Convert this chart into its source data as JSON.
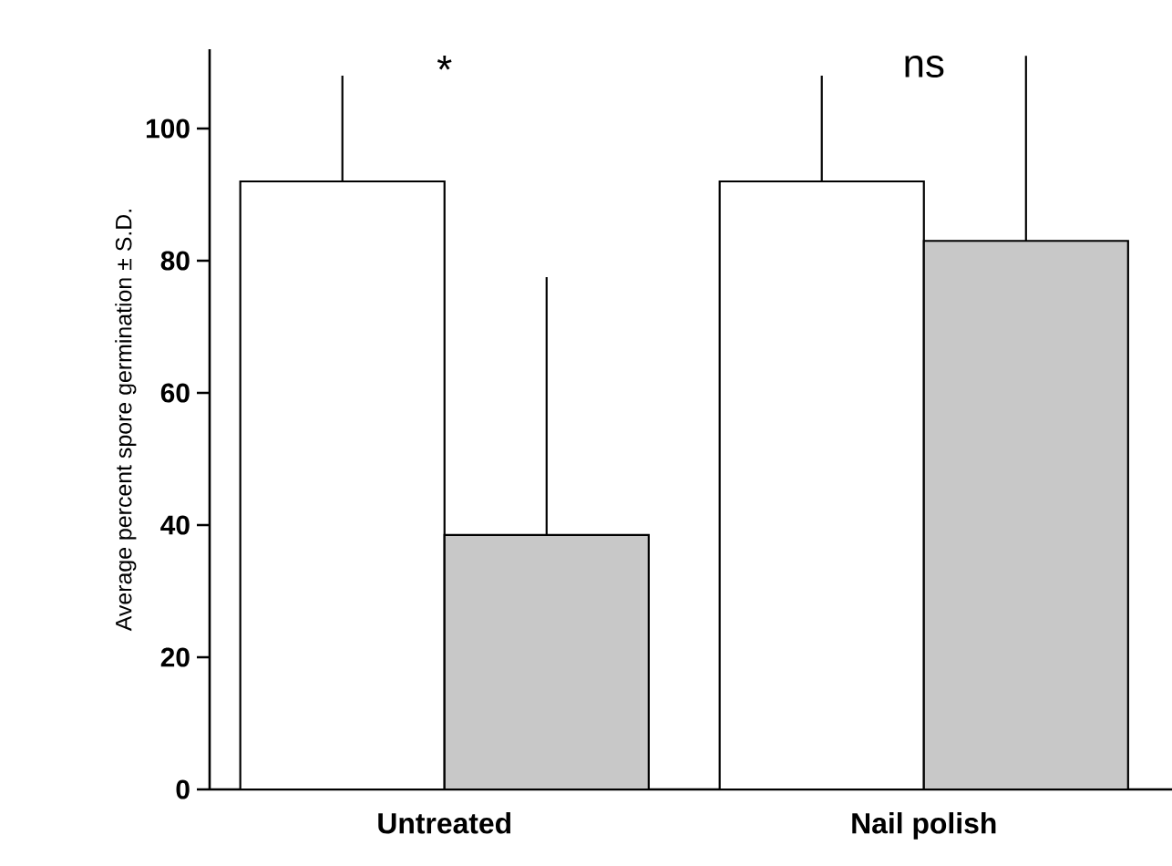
{
  "chart_data": {
    "type": "bar",
    "ylabel": "Average percent spore germination ± S.D.",
    "categories": [
      "Untreated",
      "Nail polish"
    ],
    "series": [
      {
        "color": "#ffffff",
        "values": [
          92,
          92
        ],
        "errors": [
          [
            92,
            108
          ],
          [
            92,
            108
          ]
        ]
      },
      {
        "color": "#c8c8c8",
        "values": [
          38.5,
          83
        ],
        "errors": [
          [
            38.5,
            77.5
          ],
          [
            83,
            111
          ]
        ]
      }
    ],
    "ylim": [
      0,
      112
    ],
    "yticks": [
      0,
      20,
      40,
      60,
      80,
      100
    ],
    "annotations": [
      "*",
      "ns"
    ]
  }
}
